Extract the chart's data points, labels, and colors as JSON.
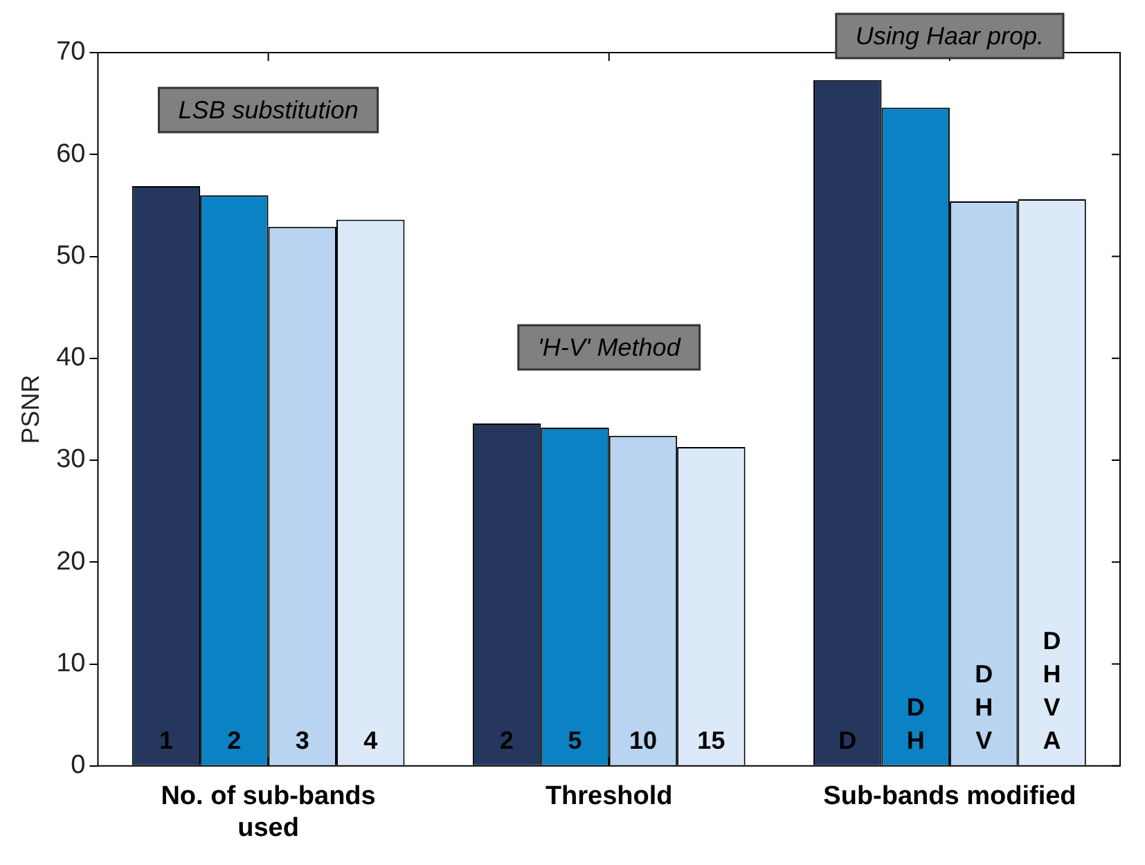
{
  "chart_data": {
    "type": "bar",
    "ylabel": "PSNR",
    "categories": [
      "No. of sub-bands used",
      "Threshold",
      "Sub-bands modified"
    ],
    "series": [
      {
        "color": "#26375e",
        "values": [
          56.9,
          33.6,
          67.3
        ]
      },
      {
        "color": "#0a82c4",
        "values": [
          56.0,
          33.2,
          64.6
        ]
      },
      {
        "color": "#b8d4f0",
        "values": [
          52.9,
          32.4,
          55.4
        ]
      },
      {
        "color": "#dce9f8",
        "values": [
          53.6,
          31.3,
          55.6
        ]
      }
    ],
    "annotations": [
      "LSB substitution",
      "'H-V' Method",
      "Using Haar prop.",
      "1",
      "2",
      "3",
      "4",
      "2",
      "5",
      "10",
      "15",
      "D",
      "D\nH",
      "D\nH\nV",
      "D\nH\nV\nA"
    ],
    "ylim": [
      0,
      70
    ],
    "yticks": [
      0,
      10,
      20,
      30,
      40,
      50,
      60,
      70
    ],
    "grid": false,
    "legend": false
  }
}
